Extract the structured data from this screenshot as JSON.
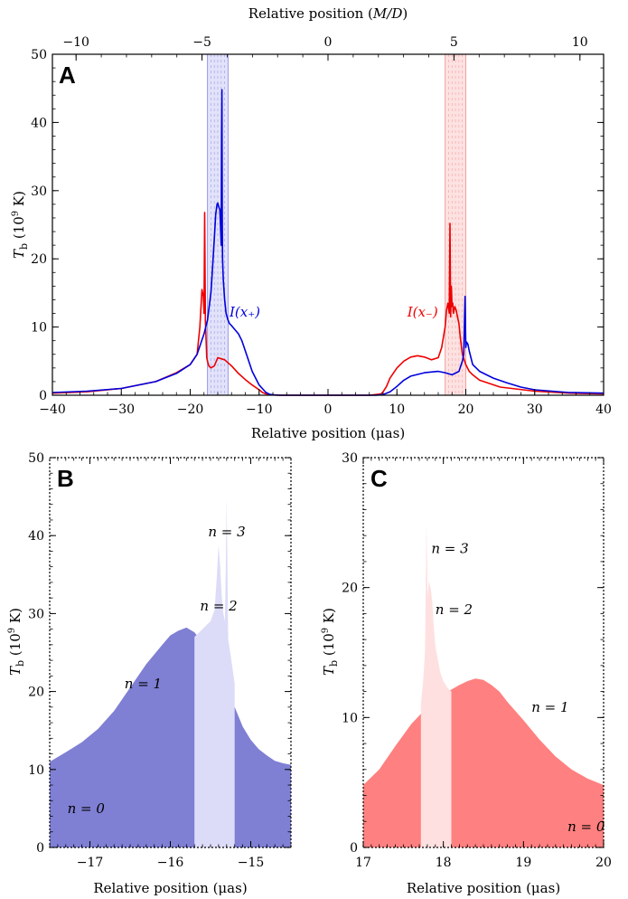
{
  "colors": {
    "blue": "#0000dd",
    "red": "#ee0000",
    "blue_dark_fill": "#7f7fd4",
    "blue_light_fill": "#dcdcf9",
    "red_dark_fill": "#ff8080",
    "red_light_fill": "#ffe0e0"
  },
  "chart_data": [
    {
      "id": "A",
      "type": "line",
      "panel_label": "A",
      "xlabel": "Relative position (μas)",
      "x2label": "Relative position (M/D)",
      "ylabel": "T_b (10^9 K)",
      "xlim": [
        -40,
        40
      ],
      "ylim": [
        0,
        50
      ],
      "x2lim": [
        -10.94,
        10.94
      ],
      "xticks": [
        "−40",
        "−30",
        "−20",
        "−10",
        "0",
        "10",
        "20",
        "30",
        "40"
      ],
      "x2ticks": [
        "−10",
        "−5",
        "0",
        "5",
        "10"
      ],
      "yticks": [
        "0",
        "10",
        "20",
        "30",
        "40",
        "50"
      ],
      "bands": [
        {
          "x0": -17.5,
          "x1": -14.5,
          "color": "blue"
        },
        {
          "x0": 17,
          "x1": 20,
          "color": "red"
        }
      ],
      "annotations": [
        {
          "text": "I(x₊)",
          "x": -14.3,
          "y": 12.2,
          "color": "blue"
        },
        {
          "text": "I(x₋)",
          "x": 11.5,
          "y": 12.2,
          "color": "red"
        }
      ],
      "series": [
        {
          "color": "red",
          "x": [
            -40,
            -35,
            -30,
            -25,
            -22,
            -20,
            -19,
            -18.6,
            -18.3,
            -18.1,
            -18.0,
            -17.9,
            -17.8,
            -17.6,
            -17.5,
            -17.3,
            -17.0,
            -16.5,
            -16,
            -15,
            -14,
            -13,
            -12,
            -11,
            -10,
            -9.5,
            -9,
            -8.5,
            -8,
            -7,
            0,
            6,
            7,
            7.7,
            8,
            8.5,
            9,
            10,
            11,
            12,
            13,
            14,
            15,
            16,
            16.5,
            17,
            17.2,
            17.4,
            17.6,
            17.7,
            17.8,
            17.9,
            18.0,
            18.1,
            18.2,
            18.4,
            18.6,
            18.8,
            19,
            19.2,
            19.5,
            20,
            20.5,
            21,
            22,
            25,
            30,
            35,
            40
          ],
          "y": [
            0.3,
            0.5,
            1.0,
            2.0,
            3.3,
            4.5,
            6.0,
            10.0,
            15.5,
            14.5,
            12.0,
            26.8,
            11.0,
            5.5,
            5.0,
            4.3,
            4.0,
            4.3,
            5.5,
            5.2,
            4.3,
            3.2,
            2.3,
            1.5,
            0.8,
            0.4,
            0.2,
            0.1,
            0.05,
            0,
            0,
            0,
            0.1,
            0.2,
            0.5,
            1.3,
            2.5,
            4.0,
            5.0,
            5.6,
            5.8,
            5.6,
            5.2,
            5.5,
            7.0,
            10.0,
            12.5,
            13.5,
            12.0,
            25.2,
            11.5,
            16.0,
            13.0,
            13.5,
            12.0,
            13.0,
            12.5,
            11.5,
            10.5,
            8.5,
            6.0,
            4.5,
            3.5,
            3.0,
            2.2,
            1.2,
            0.6,
            0.3,
            0.2
          ]
        },
        {
          "color": "blue",
          "x": [
            -40,
            -35,
            -30,
            -25,
            -22,
            -20,
            -19,
            -18,
            -17.5,
            -17,
            -16.8,
            -16.5,
            -16.3,
            -16.1,
            -16.0,
            -15.9,
            -15.8,
            -15.7,
            -15.6,
            -15.5,
            -15.45,
            -15.4,
            -15.35,
            -15.3,
            -15.2,
            -15.0,
            -14.8,
            -14.5,
            -14.3,
            -14,
            -13,
            -12.5,
            -12,
            -11,
            -10,
            -9,
            -8.5,
            -8,
            -7.5,
            -7,
            0,
            6,
            7,
            8,
            9,
            10,
            11,
            12,
            14,
            16,
            17,
            18,
            19,
            19.5,
            19.7,
            19.9,
            20.0,
            20.1,
            20.3,
            20.5,
            21,
            22,
            24,
            26,
            28,
            30,
            35,
            40
          ],
          "y": [
            0.4,
            0.6,
            1.0,
            2.0,
            3.2,
            4.5,
            6.0,
            9.0,
            11.0,
            15.0,
            18.0,
            23.0,
            26.5,
            28.0,
            28.2,
            27.8,
            27.5,
            27.2,
            25.0,
            22.0,
            38.0,
            44.8,
            25.0,
            20.0,
            17.0,
            14.0,
            12.0,
            11.0,
            10.5,
            10.2,
            9.0,
            8.0,
            6.5,
            3.5,
            1.5,
            0.4,
            0.15,
            0.05,
            0.02,
            0,
            0,
            0,
            0,
            0.1,
            0.5,
            1.3,
            2.2,
            2.8,
            3.3,
            3.5,
            3.3,
            3.0,
            3.5,
            5.0,
            6.0,
            14.5,
            7.0,
            7.8,
            7.5,
            6.5,
            4.5,
            3.5,
            2.5,
            1.8,
            1.2,
            0.8,
            0.4,
            0.3
          ]
        }
      ]
    },
    {
      "id": "B",
      "type": "area",
      "panel_label": "B",
      "xlabel": "Relative position (μas)",
      "ylabel": "T_b (10^9 K)",
      "xlim": [
        -17.5,
        -14.5
      ],
      "ylim": [
        0,
        50
      ],
      "xticks": [
        "−17",
        "−16",
        "−15"
      ],
      "yticks": [
        "0",
        "10",
        "20",
        "30",
        "40",
        "50"
      ],
      "annotations": [
        {
          "text": "n = 3",
          "x": -15.53,
          "y": 40.5
        },
        {
          "text": "n = 2",
          "x": -15.63,
          "y": 31.0
        },
        {
          "text": "n = 1",
          "x": -16.57,
          "y": 21.0
        },
        {
          "text": "n = 0",
          "x": -17.28,
          "y": 5.0
        }
      ],
      "layers": [
        {
          "label": "n = 0",
          "color": "blue_light_fill",
          "x": [
            -17.5,
            -17.0,
            -16.5,
            -16.0,
            -15.5,
            -15.0,
            -14.5
          ],
          "y": [
            8.7,
            9.2,
            9.6,
            9.9,
            10.2,
            10.4,
            10.5
          ]
        },
        {
          "label": "n = 1",
          "color": "blue_dark_fill",
          "x": [
            -17.5,
            -17.3,
            -17.1,
            -16.9,
            -16.7,
            -16.5,
            -16.3,
            -16.1,
            -16.0,
            -15.9,
            -15.8,
            -15.7,
            -15.6,
            -15.5,
            -15.4,
            -15.3,
            -15.2,
            -15.1,
            -15.0,
            -14.9,
            -14.8,
            -14.7,
            -14.6,
            -14.5
          ],
          "y": [
            11.0,
            12.2,
            13.5,
            15.2,
            17.5,
            20.5,
            23.5,
            26.0,
            27.2,
            27.8,
            28.2,
            27.6,
            26.3,
            24.8,
            22.8,
            20.5,
            18.0,
            15.5,
            13.8,
            12.6,
            11.8,
            11.1,
            10.8,
            10.6
          ]
        },
        {
          "label": "n = 2",
          "color": "blue_light_fill",
          "x": [
            -15.7,
            -15.6,
            -15.55,
            -15.5,
            -15.45,
            -15.42,
            -15.4,
            -15.38,
            -15.36,
            -15.34,
            -15.32,
            -15.3,
            -15.27,
            -15.24,
            -15.2
          ],
          "y": [
            27.0,
            28.0,
            28.5,
            29.0,
            30.5,
            35.0,
            38.8,
            36.0,
            32.0,
            30.0,
            29.0,
            28.0,
            26.0,
            24.0,
            21.0
          ]
        },
        {
          "label": "n = 3",
          "color": "blue_light_fill",
          "x": [
            -15.32,
            -15.31,
            -15.3,
            -15.29,
            -15.28,
            -15.26
          ],
          "y": [
            30.0,
            36.0,
            44.8,
            36.0,
            26.0,
            20.0
          ]
        }
      ]
    },
    {
      "id": "C",
      "type": "area",
      "panel_label": "C",
      "xlabel": "Relative position (μas)",
      "ylabel": "T_b (10^9 K)",
      "xlim": [
        17,
        20
      ],
      "ylim": [
        0,
        30
      ],
      "xticks": [
        "17",
        "18",
        "19",
        "20"
      ],
      "yticks": [
        "0",
        "10",
        "20",
        "30"
      ],
      "annotations": [
        {
          "text": "n = 3",
          "x": 17.85,
          "y": 23.0
        },
        {
          "text": "n = 2",
          "x": 17.9,
          "y": 18.3
        },
        {
          "text": "n = 1",
          "x": 19.1,
          "y": 10.8
        },
        {
          "text": "n = 0",
          "x": 19.55,
          "y": 1.6
        }
      ],
      "layers": [
        {
          "label": "n = 0",
          "color": "red_light_fill",
          "x": [
            17,
            18,
            19,
            20
          ],
          "y": [
            4.3,
            3.9,
            3.5,
            3.1
          ]
        },
        {
          "label": "n = 1",
          "color": "red_dark_fill",
          "x": [
            17.0,
            17.2,
            17.4,
            17.6,
            17.8,
            18.0,
            18.2,
            18.3,
            18.4,
            18.5,
            18.6,
            18.7,
            18.8,
            19.0,
            19.2,
            19.4,
            19.6,
            19.8,
            20.0
          ],
          "y": [
            4.8,
            6.0,
            7.8,
            9.5,
            10.8,
            11.8,
            12.5,
            12.8,
            13.0,
            12.9,
            12.5,
            12.0,
            11.2,
            9.8,
            8.3,
            7.0,
            6.0,
            5.3,
            4.8
          ]
        },
        {
          "label": "n = 2",
          "color": "red_light_fill",
          "x": [
            17.72,
            17.75,
            17.78,
            17.8,
            17.82,
            17.84,
            17.86,
            17.88,
            17.9,
            17.93,
            17.96,
            18.0,
            18.05,
            18.1
          ],
          "y": [
            11.0,
            13.0,
            16.0,
            19.0,
            20.5,
            20.0,
            19.0,
            17.0,
            15.5,
            14.5,
            13.5,
            12.8,
            12.3,
            12.0
          ]
        },
        {
          "label": "n = 3",
          "color": "red_light_fill",
          "x": [
            17.77,
            17.78,
            17.79,
            17.8,
            17.81,
            17.82
          ],
          "y": [
            15.0,
            20.0,
            25.0,
            21.0,
            16.0,
            13.0
          ]
        }
      ]
    }
  ]
}
